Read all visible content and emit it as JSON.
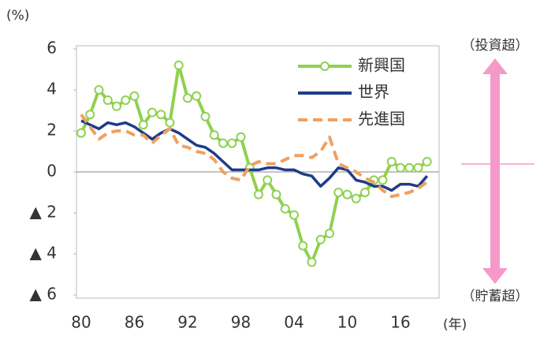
{
  "chart_data": {
    "type": "line",
    "y_axis_label": "(%)",
    "x_axis_label": "(年)",
    "annotations": {
      "top": "（投資超）",
      "bottom": "（貯蓄超）"
    },
    "categories": [
      "80",
      null,
      null,
      null,
      null,
      null,
      "86",
      null,
      null,
      null,
      null,
      null,
      "92",
      null,
      null,
      null,
      null,
      null,
      "98",
      null,
      null,
      null,
      null,
      null,
      "04",
      null,
      null,
      null,
      null,
      null,
      "10",
      null,
      null,
      null,
      null,
      null,
      "16",
      null,
      null,
      null
    ],
    "series": [
      {
        "name": "新興国",
        "color": "#8fd14f",
        "style": "marker",
        "values": [
          1.9,
          2.8,
          4.0,
          3.5,
          3.2,
          3.5,
          3.7,
          2.3,
          2.9,
          2.8,
          2.4,
          5.2,
          3.6,
          3.7,
          2.7,
          1.8,
          1.4,
          1.4,
          1.7,
          0.2,
          -1.1,
          -0.4,
          -1.1,
          -1.8,
          -2.1,
          -3.6,
          -4.4,
          -3.3,
          -3.0,
          -1.0,
          -1.1,
          -1.3,
          -1.0,
          -0.4,
          -0.4,
          0.5,
          0.2,
          0.2,
          0.2,
          0.5
        ]
      },
      {
        "name": "世界",
        "color": "#1f3c88",
        "style": "solid",
        "values": [
          2.5,
          2.3,
          2.1,
          2.4,
          2.3,
          2.4,
          2.2,
          1.9,
          1.6,
          1.9,
          2.1,
          1.9,
          1.6,
          1.3,
          1.2,
          0.9,
          0.5,
          0.1,
          0.1,
          0.1,
          0.1,
          0.2,
          0.2,
          0.1,
          0.1,
          -0.1,
          -0.2,
          -0.7,
          -0.3,
          0.2,
          0.1,
          -0.4,
          -0.5,
          -0.7,
          -0.7,
          -0.9,
          -0.6,
          -0.6,
          -0.7,
          -0.2
        ]
      },
      {
        "name": "先進国",
        "color": "#f0a060",
        "style": "dashed",
        "values": [
          2.8,
          2.2,
          1.6,
          1.9,
          2.0,
          2.0,
          1.8,
          1.8,
          1.4,
          1.8,
          2.1,
          1.3,
          1.2,
          1.0,
          0.9,
          0.6,
          0.0,
          -0.3,
          -0.4,
          0.3,
          0.5,
          0.4,
          0.4,
          0.6,
          0.8,
          0.8,
          0.7,
          1.0,
          1.7,
          0.4,
          0.2,
          0.0,
          -0.3,
          -0.5,
          -0.9,
          -1.2,
          -1.1,
          -1.0,
          -0.8,
          -0.5
        ]
      }
    ],
    "ylim": [
      -6,
      6
    ],
    "yticks": [
      6,
      4,
      2,
      0,
      {
        "value": -2,
        "label": "▲ 2"
      },
      {
        "value": -4,
        "label": "▲ 4"
      },
      {
        "value": -6,
        "label": "▲ 6"
      }
    ],
    "zero_line": true,
    "legend": "top-right"
  }
}
